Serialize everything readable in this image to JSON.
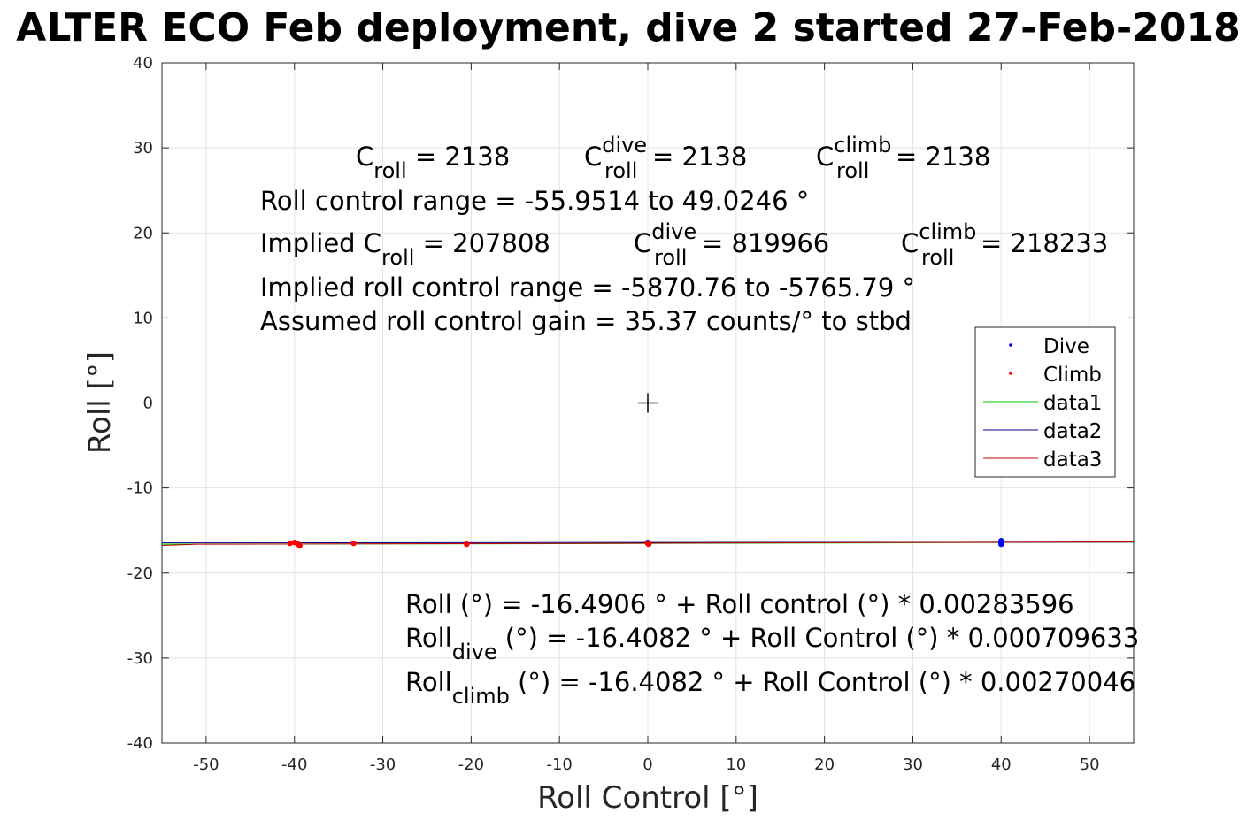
{
  "chart_data": {
    "type": "scatter",
    "title": "ALTER ECO Feb deployment, dive 2 started 27-Feb-2018",
    "xlabel": "Roll Control [°]",
    "ylabel": "Roll [°]",
    "xlim": [
      -55,
      55
    ],
    "ylim": [
      -40,
      40
    ],
    "xticks": [
      -50,
      -40,
      -30,
      -20,
      -10,
      0,
      10,
      20,
      30,
      40,
      50
    ],
    "yticks": [
      40,
      30,
      20,
      10,
      0,
      -10,
      -20,
      -30,
      -40
    ],
    "grid": true,
    "legend_position": "right",
    "colors": {
      "dive": "#0000ff",
      "climb": "#ff0000",
      "data1": "#00c800",
      "data2": "#000080",
      "data3": "#c80000"
    },
    "series": [
      {
        "name": "Dive",
        "kind": "points",
        "color": "#0000ff",
        "x": [
          40,
          40,
          40,
          0,
          0
        ],
        "y": [
          -16.2,
          -16.4,
          -16.6,
          -16.4,
          -16.5
        ]
      },
      {
        "name": "Climb",
        "kind": "points",
        "color": "#ff0000",
        "x": [
          -40.5,
          -40.0,
          -39.6,
          -39.4,
          -33.3,
          -20.5,
          0,
          0.1
        ],
        "y": [
          -16.5,
          -16.4,
          -16.6,
          -16.8,
          -16.5,
          -16.6,
          -16.5,
          -16.6
        ]
      },
      {
        "name": "data1",
        "kind": "line",
        "color": "#00c800",
        "x": [
          -55,
          -15,
          26,
          55
        ],
        "y": [
          -16.61,
          -16.55,
          -16.45,
          -16.36
        ]
      },
      {
        "name": "data2",
        "kind": "line",
        "color": "#000080",
        "x": [
          -55,
          0,
          55
        ],
        "y": [
          -16.45,
          -16.4,
          -16.36
        ]
      },
      {
        "name": "data3",
        "kind": "line",
        "color": "#c80000",
        "x": [
          -55,
          -51,
          0,
          26,
          55
        ],
        "y": [
          -16.75,
          -16.61,
          -16.49,
          -16.41,
          -16.33
        ]
      }
    ],
    "center_marker": {
      "x": 0,
      "y": 0
    },
    "annotations": {
      "c_roll": {
        "base": "C",
        "sub": "roll",
        "value": " = 2138"
      },
      "c_dive": {
        "base": "C",
        "sup": "dive",
        "sub": "roll",
        "value": " = 2138"
      },
      "c_climb": {
        "base": "C",
        "sup": "climb",
        "sub": "roll",
        "value": " = 2138"
      },
      "range_line": "Roll control range = -55.9514 to 49.0246 °",
      "implied_prefix": "Implied C",
      "implied_sub": "roll",
      "implied_value": " = 207808",
      "implied_dive": {
        "base": "C",
        "sup": "dive",
        "sub": "roll",
        "value": " = 819966"
      },
      "implied_climb": {
        "base": "C",
        "sup": "climb",
        "sub": "roll",
        "value": " = 218233"
      },
      "implied_range_line": "Implied roll control range = -5870.76 to -5765.79 °",
      "gain_line": "Assumed roll control gain = 35.37 counts/° to stbd",
      "fit_line": "Roll (°) = -16.4906 ° + Roll control (°) * 0.00283596",
      "fit_dive": {
        "base": "Roll",
        "sub": "dive",
        "rest": " (°) = -16.4082 ° + Roll Control (°) * 0.000709633"
      },
      "fit_climb": {
        "base": "Roll",
        "sub": "climb",
        "rest": " (°) = -16.4082 ° + Roll Control (°) * 0.00270046"
      }
    }
  }
}
